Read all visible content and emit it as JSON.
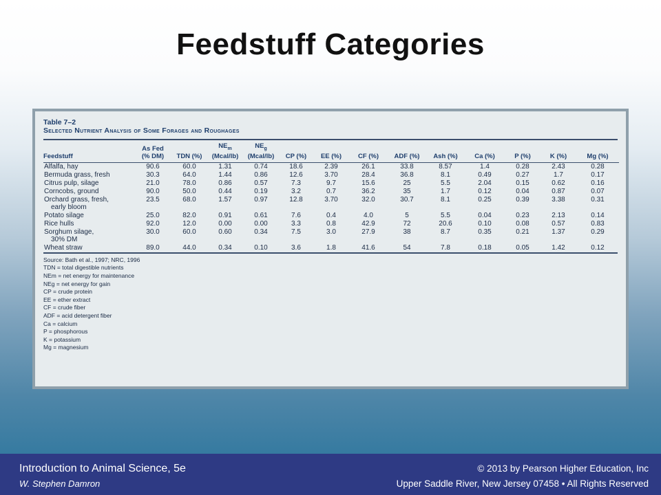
{
  "slide": {
    "title": "Feedstuff Categories"
  },
  "table": {
    "number": "Table 7–2",
    "caption": "Selected Nutrient Analysis of Some Forages and Roughages",
    "headers": {
      "feedstuff": "Feedstuff",
      "as_fed_line1": "As Fed",
      "as_fed_line2": "(% DM)",
      "tdn": "TDN (%)",
      "nem_base": "NE",
      "nem_sub": "m",
      "nem_unit": "(Mcal/lb)",
      "neg_base": "NE",
      "neg_sub": "g",
      "neg_unit": "(Mcal/lb)",
      "cp": "CP (%)",
      "ee": "EE (%)",
      "cf": "CF (%)",
      "adf": "ADF (%)",
      "ash": "Ash (%)",
      "ca": "Ca (%)",
      "p": "P (%)",
      "k": "K (%)",
      "mg": "Mg (%)"
    },
    "rows": [
      {
        "name": "Alfalfa, hay",
        "name2": "",
        "values": [
          "90.6",
          "60.0",
          "1.31",
          "0.74",
          "18.6",
          "2.39",
          "26.1",
          "33.8",
          "8.57",
          "1.4",
          "0.28",
          "2.43",
          "0.28"
        ]
      },
      {
        "name": "Bermuda grass, fresh",
        "name2": "",
        "values": [
          "30.3",
          "64.0",
          "1.44",
          "0.86",
          "12.6",
          "3.70",
          "28.4",
          "36.8",
          "8.1",
          "0.49",
          "0.27",
          "1.7",
          "0.17"
        ]
      },
      {
        "name": "Citrus pulp, silage",
        "name2": "",
        "values": [
          "21.0",
          "78.0",
          "0.86",
          "0.57",
          "7.3",
          "9.7",
          "15.6",
          "25",
          "5.5",
          "2.04",
          "0.15",
          "0.62",
          "0.16"
        ]
      },
      {
        "name": "Corncobs, ground",
        "name2": "",
        "values": [
          "90.0",
          "50.0",
          "0.44",
          "0.19",
          "3.2",
          "0.7",
          "36.2",
          "35",
          "1.7",
          "0.12",
          "0.04",
          "0.87",
          "0.07"
        ]
      },
      {
        "name": "Orchard grass, fresh,",
        "name2": "early bloom",
        "values": [
          "23.5",
          "68.0",
          "1.57",
          "0.97",
          "12.8",
          "3.70",
          "32.0",
          "30.7",
          "8.1",
          "0.25",
          "0.39",
          "3.38",
          "0.31"
        ]
      },
      {
        "name": "Potato silage",
        "name2": "",
        "values": [
          "25.0",
          "82.0",
          "0.91",
          "0.61",
          "7.6",
          "0.4",
          "4.0",
          "5",
          "5.5",
          "0.04",
          "0.23",
          "2.13",
          "0.14"
        ]
      },
      {
        "name": "Rice hulls",
        "name2": "",
        "values": [
          "92.0",
          "12.0",
          "0.00",
          "0.00",
          "3.3",
          "0.8",
          "42.9",
          "72",
          "20.6",
          "0.10",
          "0.08",
          "0.57",
          "0.83"
        ]
      },
      {
        "name": "Sorghum silage,",
        "name2": "30% DM",
        "values": [
          "30.0",
          "60.0",
          "0.60",
          "0.34",
          "7.5",
          "3.0",
          "27.9",
          "38",
          "8.7",
          "0.35",
          "0.21",
          "1.37",
          "0.29"
        ]
      },
      {
        "name": "Wheat straw",
        "name2": "",
        "values": [
          "89.0",
          "44.0",
          "0.34",
          "0.10",
          "3.6",
          "1.8",
          "41.6",
          "54",
          "7.8",
          "0.18",
          "0.05",
          "1.42",
          "0.12"
        ]
      }
    ],
    "footnotes": [
      "Source: Bath et al., 1997; NRC, 1996",
      "TDN = total digestible nutrients",
      "NEm = net energy for maintenance",
      "NEg = net energy for gain",
      "CP = crude protein",
      "EE = ether extract",
      "CF = crude fiber",
      "ADF = acid detergent fiber",
      "Ca = calcium",
      "P = phosphorous",
      "K = potassium",
      "Mg = magnesium"
    ]
  },
  "footer": {
    "book_title": "Introduction to Animal Science, 5e",
    "author": "W. Stephen Damron",
    "copyright": "© 2013 by Pearson Higher Education, Inc",
    "address": "Upper Saddle River, New Jersey 07458 • All Rights Reserved"
  },
  "colors": {
    "footer_bg": "#2e3a84",
    "table_frame": "#8fa0ab",
    "table_bg": "#e7ecee",
    "table_text": "#1e3e6c"
  }
}
